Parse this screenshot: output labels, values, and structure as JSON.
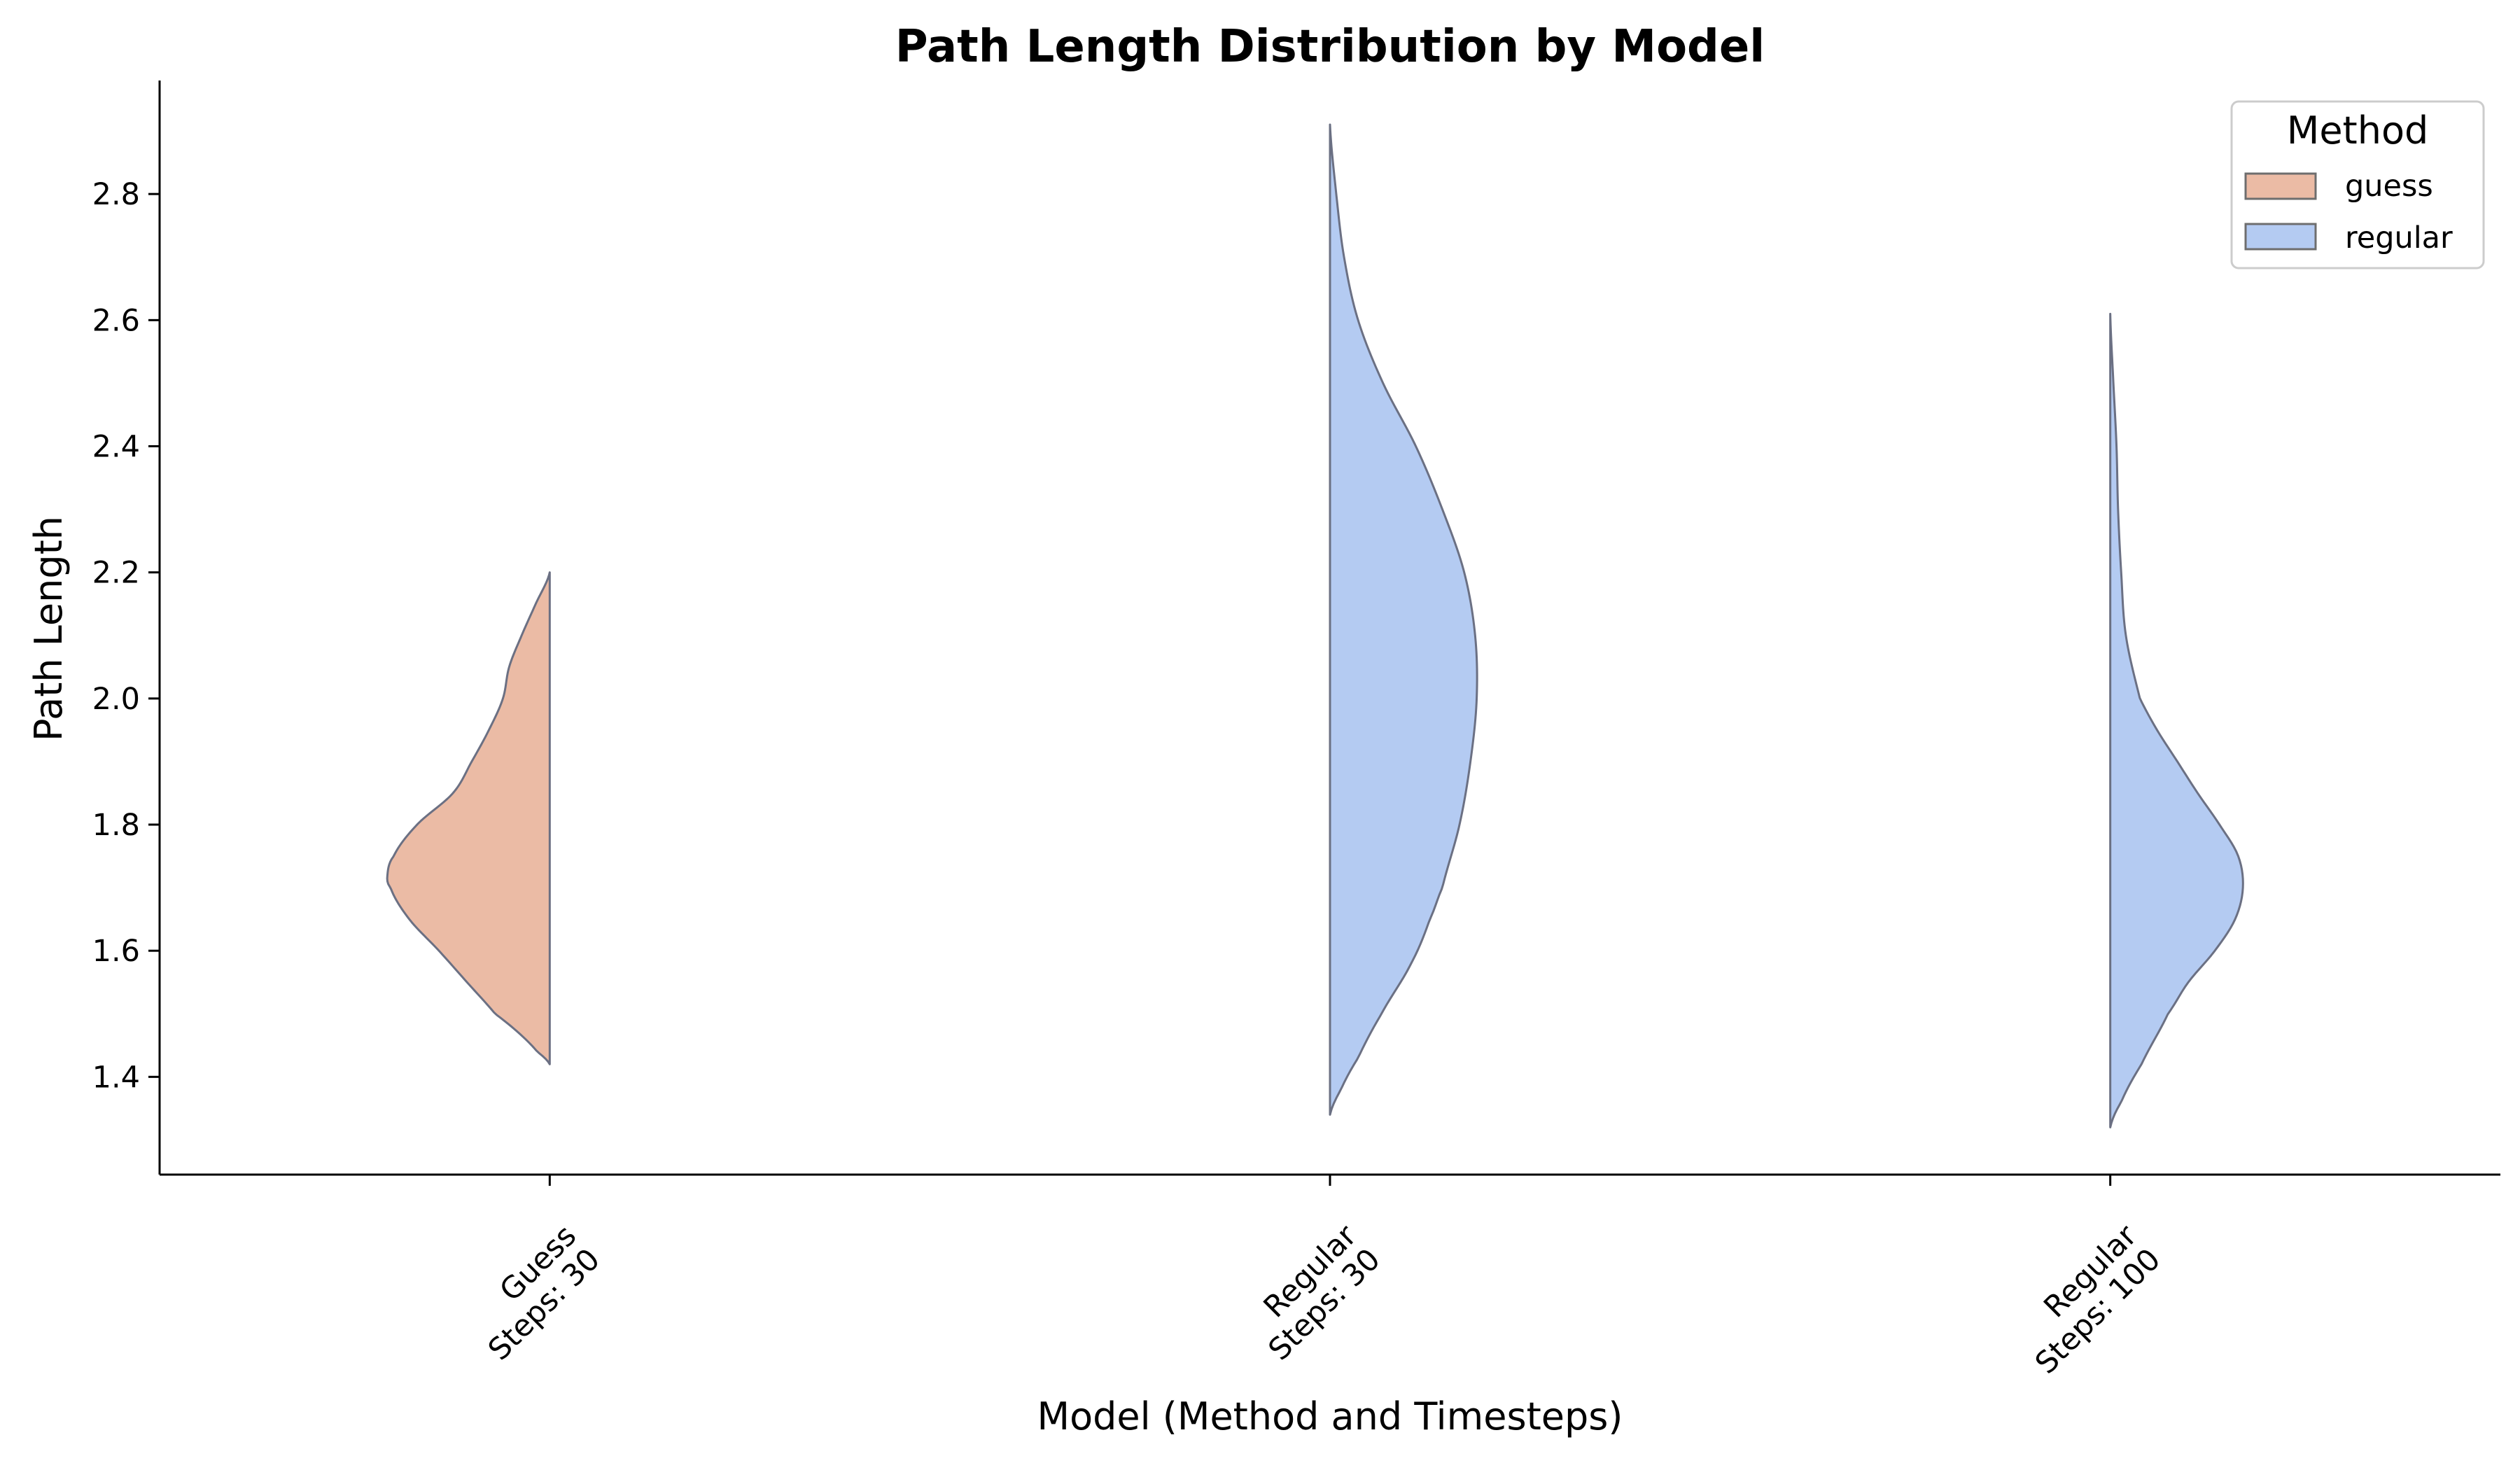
{
  "chart_data": {
    "type": "violin",
    "title": "Path Length Distribution by Model",
    "xlabel": "Model (Method and Timesteps)",
    "ylabel": "Path Length",
    "ylim": [
      1.245,
      2.98
    ],
    "y_ticks": [
      1.4,
      1.6,
      1.8,
      2.0,
      2.2,
      2.4,
      2.6,
      2.8
    ],
    "y_tick_labels": [
      "1.4",
      "1.6",
      "1.8",
      "2.0",
      "2.2",
      "2.4",
      "2.6",
      "2.8"
    ],
    "categories": [
      {
        "lines": [
          "Guess",
          "Steps: 30"
        ]
      },
      {
        "lines": [
          "Regular",
          "Steps: 30"
        ]
      },
      {
        "lines": [
          "Regular",
          "Steps: 100"
        ]
      }
    ],
    "legend": {
      "title": "Method",
      "position": "top-right",
      "entries": [
        {
          "label": "guess",
          "color": "#ebbba5"
        },
        {
          "label": "regular",
          "color": "#b4cbf2"
        }
      ]
    },
    "series": [
      {
        "method": "guess",
        "category_index": 0,
        "side": "left",
        "color": "#ebbba5",
        "y_min": 1.42,
        "y_max": 2.2,
        "profile": [
          [
            1.42,
            0.0
          ],
          [
            1.44,
            0.08
          ],
          [
            1.47,
            0.2
          ],
          [
            1.5,
            0.35
          ],
          [
            1.55,
            0.53
          ],
          [
            1.6,
            0.71
          ],
          [
            1.65,
            0.9
          ],
          [
            1.7,
            1.02
          ],
          [
            1.72,
            1.04
          ],
          [
            1.75,
            1.0
          ],
          [
            1.8,
            0.85
          ],
          [
            1.85,
            0.62
          ],
          [
            1.9,
            0.5
          ],
          [
            1.95,
            0.39
          ],
          [
            2.0,
            0.3
          ],
          [
            2.05,
            0.26
          ],
          [
            2.1,
            0.18
          ],
          [
            2.15,
            0.09
          ],
          [
            2.2,
            0.0
          ]
        ]
      },
      {
        "method": "regular",
        "category_index": 1,
        "side": "right",
        "color": "#b4cbf2",
        "y_min": 1.34,
        "y_max": 2.91,
        "profile": [
          [
            1.34,
            0.0
          ],
          [
            1.38,
            0.07
          ],
          [
            1.43,
            0.18
          ],
          [
            1.5,
            0.33
          ],
          [
            1.58,
            0.52
          ],
          [
            1.65,
            0.64
          ],
          [
            1.7,
            0.72
          ],
          [
            1.8,
            0.83
          ],
          [
            1.9,
            0.9
          ],
          [
            2.0,
            0.94
          ],
          [
            2.1,
            0.93
          ],
          [
            2.2,
            0.86
          ],
          [
            2.3,
            0.72
          ],
          [
            2.4,
            0.55
          ],
          [
            2.5,
            0.34
          ],
          [
            2.6,
            0.18
          ],
          [
            2.7,
            0.09
          ],
          [
            2.8,
            0.04
          ],
          [
            2.91,
            0.0
          ]
        ]
      },
      {
        "method": "regular",
        "category_index": 2,
        "side": "right",
        "color": "#b4cbf2",
        "y_min": 1.32,
        "y_max": 2.61,
        "profile": [
          [
            1.32,
            0.0
          ],
          [
            1.36,
            0.07
          ],
          [
            1.42,
            0.2
          ],
          [
            1.5,
            0.37
          ],
          [
            1.55,
            0.5
          ],
          [
            1.6,
            0.67
          ],
          [
            1.65,
            0.8
          ],
          [
            1.7,
            0.85
          ],
          [
            1.75,
            0.82
          ],
          [
            1.8,
            0.7
          ],
          [
            1.85,
            0.56
          ],
          [
            1.9,
            0.43
          ],
          [
            1.95,
            0.3
          ],
          [
            2.0,
            0.19
          ],
          [
            2.1,
            0.1
          ],
          [
            2.2,
            0.07
          ],
          [
            2.3,
            0.05
          ],
          [
            2.4,
            0.04
          ],
          [
            2.5,
            0.02
          ],
          [
            2.61,
            0.0
          ]
        ]
      }
    ]
  }
}
